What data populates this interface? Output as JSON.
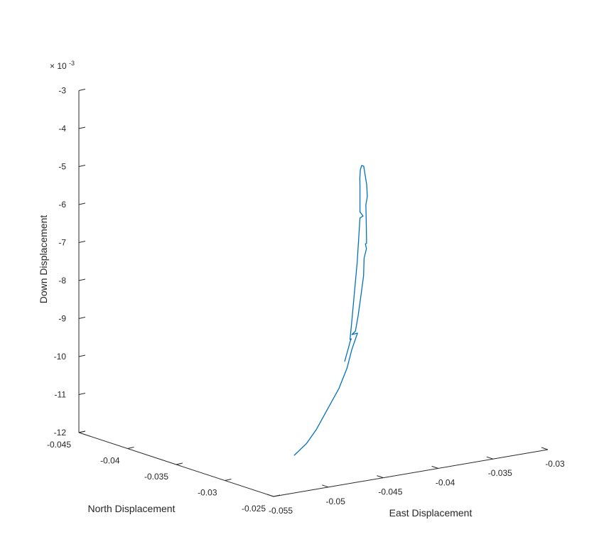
{
  "chart_data": {
    "type": "line",
    "projection": "3d",
    "title": "",
    "xlabel": "East Displacement",
    "ylabel": "North Displacement",
    "zlabel": "Down Displacement",
    "z_exponent_label": "× 10",
    "z_exponent_power": "-3",
    "xlim": [
      -0.055,
      -0.03
    ],
    "ylim": [
      -0.045,
      -0.025
    ],
    "zlim": [
      -12,
      -3
    ],
    "x_ticks": [
      "-0.055",
      "-0.05",
      "-0.045",
      "-0.04",
      "-0.035",
      "-0.03"
    ],
    "y_ticks": [
      "-0.045",
      "-0.04",
      "-0.035",
      "-0.03",
      "-0.025"
    ],
    "z_ticks": [
      "-3",
      "-4",
      "-5",
      "-6",
      "-7",
      "-8",
      "-9",
      "-10",
      "-11",
      "-12"
    ],
    "grid": false,
    "line_color": "#0072BD",
    "series": [
      {
        "comment_free": true,
        "points": [
          [
            -0.0508,
            -0.0276,
            -11.34
          ],
          [
            -0.0496,
            -0.0277,
            -11.1
          ],
          [
            -0.0486,
            -0.0278,
            -10.78
          ],
          [
            -0.0474,
            -0.028,
            -10.32
          ],
          [
            -0.0462,
            -0.0282,
            -9.86
          ],
          [
            -0.0452,
            -0.0285,
            -9.4
          ],
          [
            -0.0444,
            -0.0289,
            -8.98
          ],
          [
            -0.0438,
            -0.029,
            -8.59
          ],
          [
            -0.0444,
            -0.0289,
            -8.59
          ],
          [
            -0.0439,
            -0.0291,
            -8.54
          ],
          [
            -0.0433,
            -0.0295,
            -8.2
          ],
          [
            -0.0426,
            -0.03,
            -7.74
          ],
          [
            -0.042,
            -0.0304,
            -7.28
          ],
          [
            -0.0416,
            -0.0308,
            -6.88
          ],
          [
            -0.0413,
            -0.0309,
            -6.65
          ],
          [
            -0.0414,
            -0.0309,
            -6.52
          ],
          [
            -0.0412,
            -0.031,
            -6.52
          ],
          [
            -0.0407,
            -0.0316,
            -6.01
          ],
          [
            -0.0402,
            -0.0322,
            -5.66
          ],
          [
            -0.0398,
            -0.0325,
            -5.49
          ],
          [
            -0.0395,
            -0.0329,
            -5.23
          ],
          [
            -0.0388,
            -0.0339,
            -5.01
          ],
          [
            -0.038,
            -0.0349,
            -4.98
          ],
          [
            -0.0373,
            -0.0359,
            -5.08
          ],
          [
            -0.0368,
            -0.0366,
            -5.28
          ],
          [
            -0.0364,
            -0.0371,
            -5.56
          ],
          [
            -0.0363,
            -0.0372,
            -5.78
          ],
          [
            -0.0363,
            -0.0372,
            -6.46
          ],
          [
            -0.0361,
            -0.0371,
            -6.57
          ],
          [
            -0.0363,
            -0.0372,
            -6.62
          ],
          [
            -0.0363,
            -0.0373,
            -7.05
          ],
          [
            -0.0362,
            -0.0376,
            -7.82
          ],
          [
            -0.0361,
            -0.038,
            -8.68
          ],
          [
            -0.0359,
            -0.0385,
            -9.49
          ],
          [
            -0.0357,
            -0.0389,
            -9.99
          ],
          [
            -0.0355,
            -0.039,
            -9.99
          ],
          [
            -0.0356,
            -0.039,
            -10.06
          ],
          [
            -0.0355,
            -0.0393,
            -10.27
          ],
          [
            -0.0353,
            -0.0397,
            -10.47
          ],
          [
            -0.0352,
            -0.04,
            -10.68
          ]
        ]
      }
    ]
  }
}
